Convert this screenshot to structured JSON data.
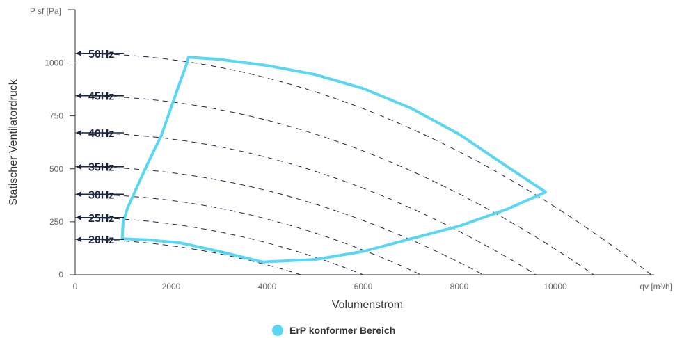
{
  "chart_data": {
    "type": "line",
    "xlabel": "Volumenstrom",
    "ylabel": "Statischer Ventilatordruck",
    "x_unit_label": "qv [m³/h]",
    "y_unit_label": "P sf [Pa]",
    "xlim": [
      0,
      12000
    ],
    "ylim": [
      0,
      1250
    ],
    "x_ticks": [
      "0",
      "2000",
      "4000",
      "6000",
      "8000",
      "10000"
    ],
    "y_ticks": [
      "0",
      "250",
      "500",
      "750",
      "1000"
    ],
    "grid": false,
    "legend_position": "bottom-center",
    "colors": {
      "erp": "#5ad6f5",
      "curves": "#1b2540",
      "axis": "#333333"
    },
    "frequency_curves": [
      {
        "label": "20Hz",
        "p0": 167,
        "qmax": 4700
      },
      {
        "label": "25Hz",
        "p0": 270,
        "qmax": 6000
      },
      {
        "label": "30Hz",
        "p0": 380,
        "qmax": 7200
      },
      {
        "label": "35Hz",
        "p0": 510,
        "qmax": 8500
      },
      {
        "label": "40Hz",
        "p0": 670,
        "qmax": 9600
      },
      {
        "label": "45Hz",
        "p0": 845,
        "qmax": 10800
      },
      {
        "label": "50Hz",
        "p0": 1045,
        "qmax": 12000
      }
    ],
    "series": [
      {
        "name": "ErP konformer Bereich",
        "points": [
          [
            2360,
            1027
          ],
          [
            2330,
            1000
          ],
          [
            2200,
            920
          ],
          [
            2000,
            790
          ],
          [
            1800,
            660
          ],
          [
            1500,
            520
          ],
          [
            1300,
            420
          ],
          [
            1100,
            320
          ],
          [
            1000,
            250
          ],
          [
            980,
            170
          ],
          [
            1500,
            165
          ],
          [
            2200,
            150
          ],
          [
            3000,
            110
          ],
          [
            3900,
            60
          ],
          [
            5000,
            72
          ],
          [
            6000,
            110
          ],
          [
            7000,
            170
          ],
          [
            8000,
            230
          ],
          [
            9000,
            310
          ],
          [
            9800,
            390
          ],
          [
            9000,
            510
          ],
          [
            8000,
            663
          ],
          [
            7000,
            786
          ],
          [
            6000,
            879
          ],
          [
            5000,
            945
          ],
          [
            4000,
            988
          ],
          [
            3000,
            1017
          ],
          [
            2360,
            1027
          ]
        ]
      }
    ]
  }
}
